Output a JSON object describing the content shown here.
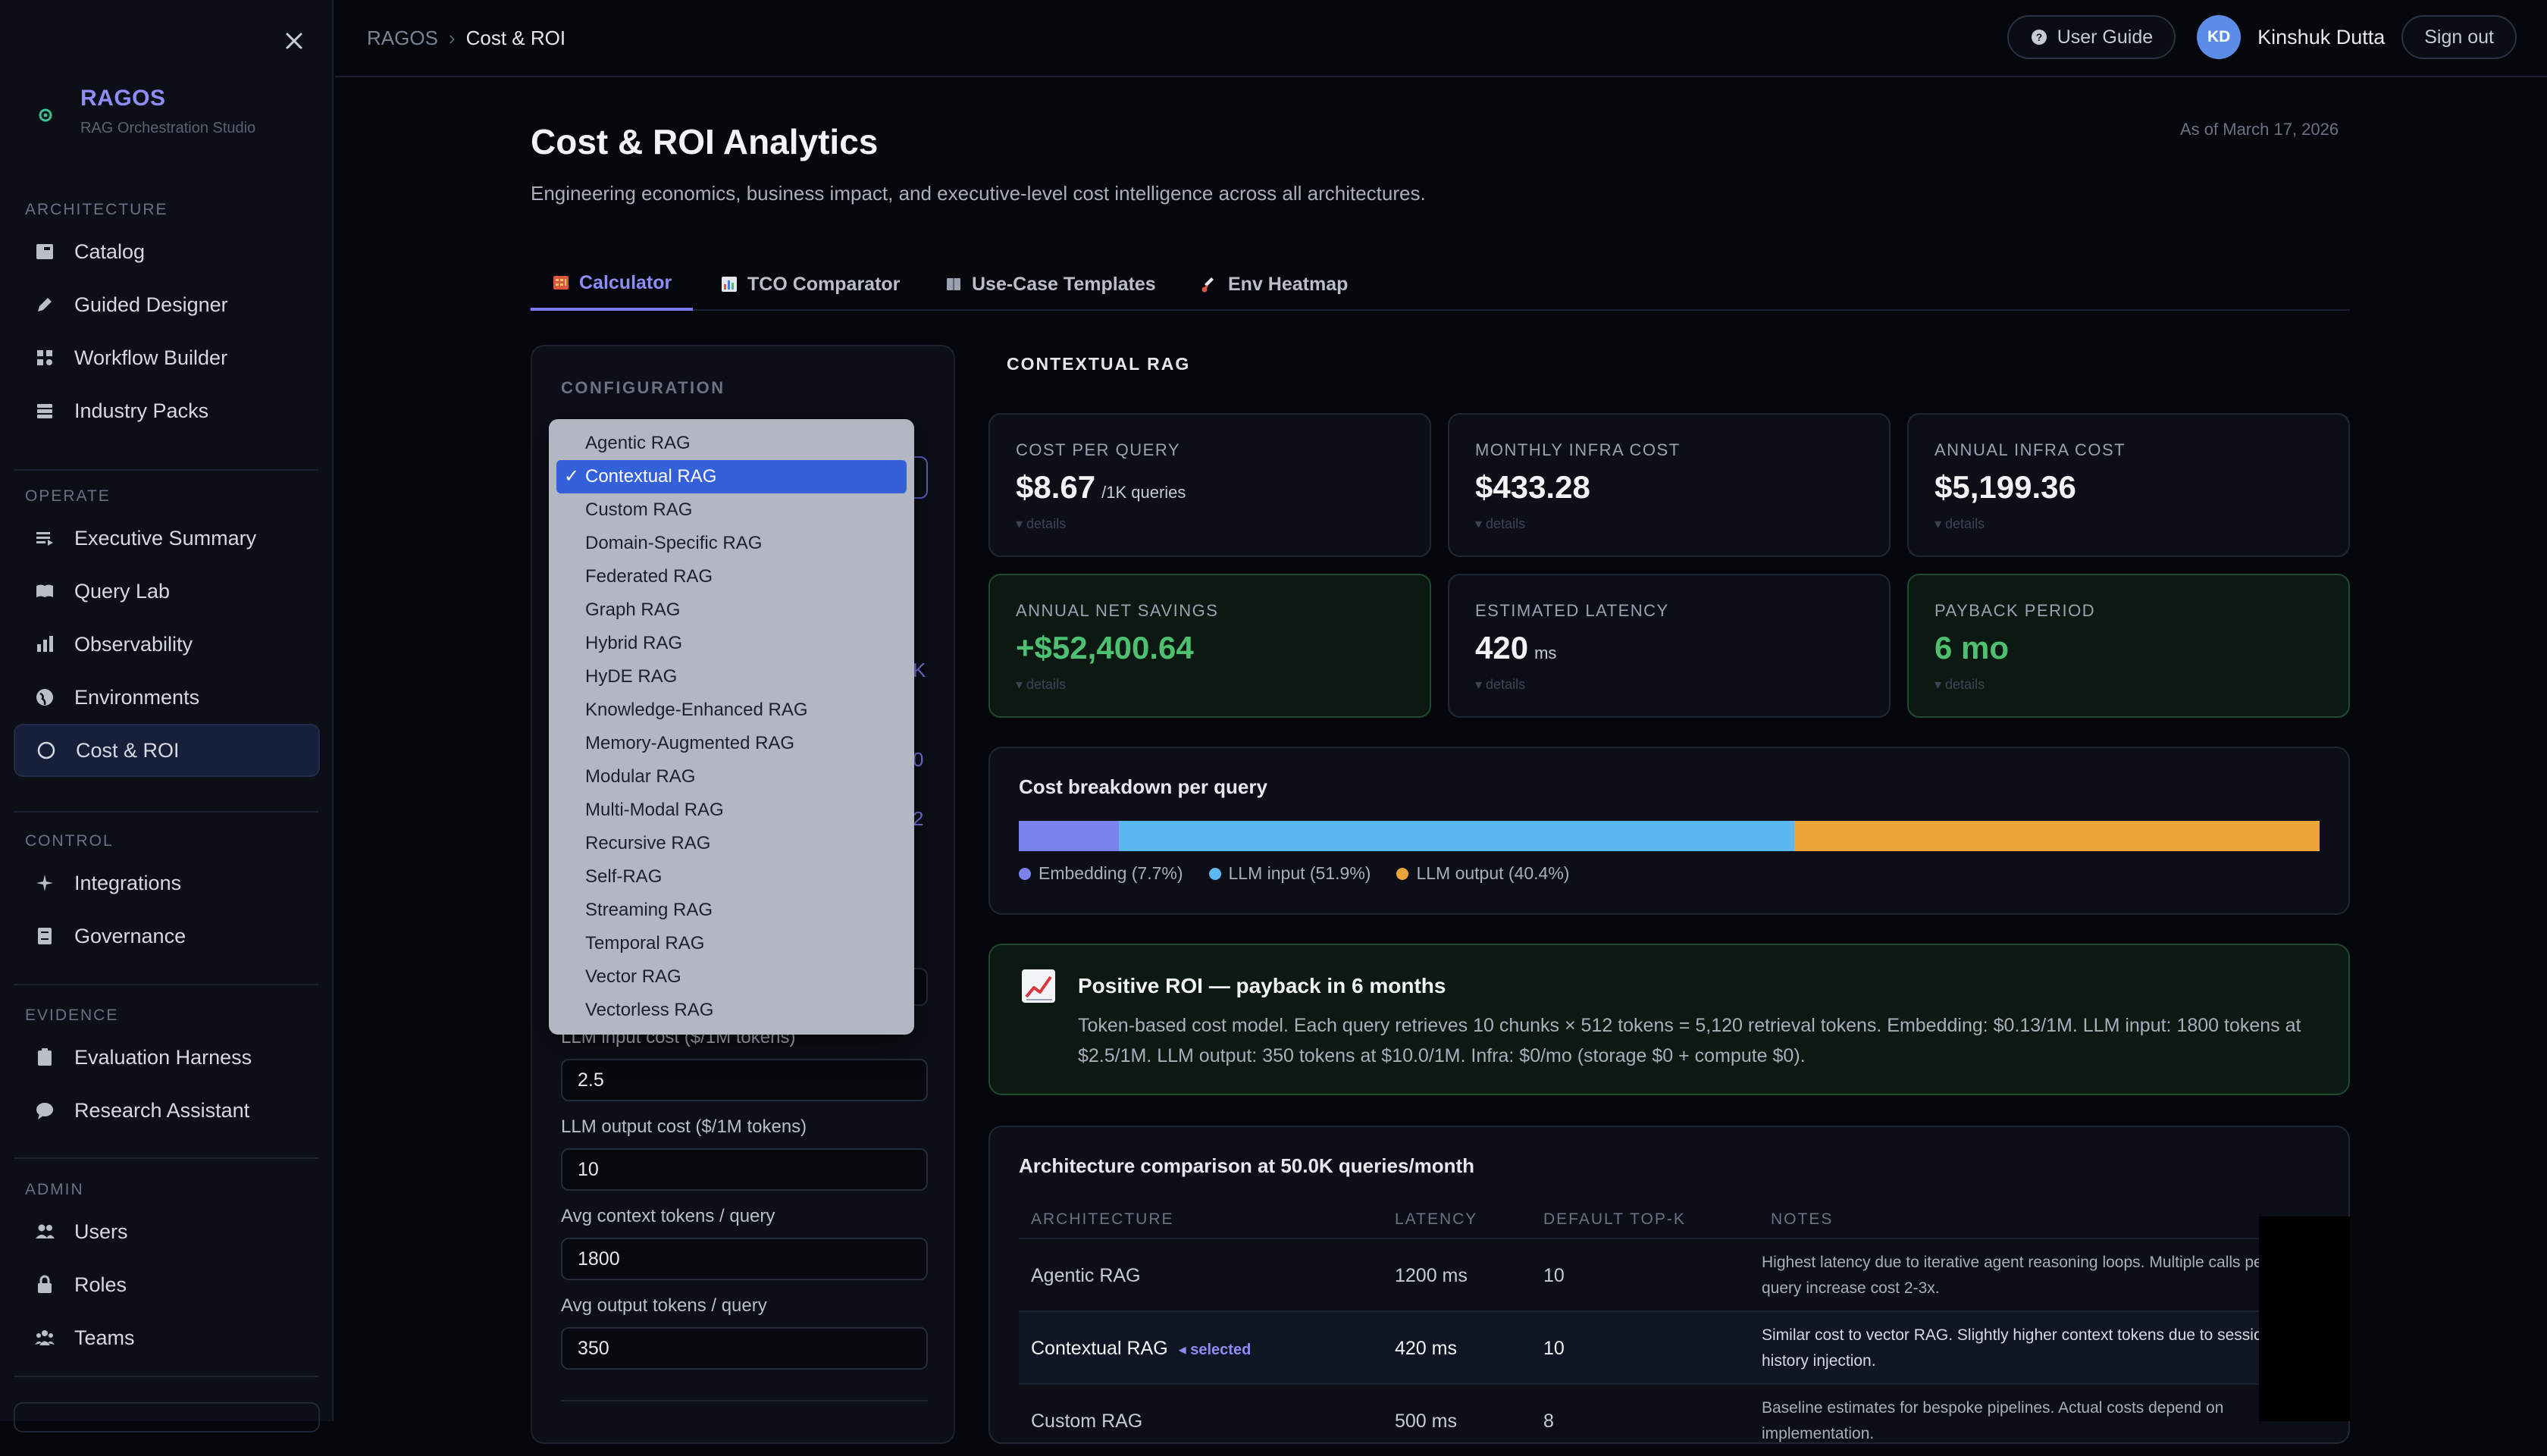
{
  "sidebar": {
    "brand_name": "RAGOS",
    "brand_sub": "RAG Orchestration Studio",
    "sections": [
      {
        "title": "ARCHITECTURE",
        "items": [
          "Catalog",
          "Guided Designer",
          "Workflow Builder",
          "Industry Packs"
        ]
      },
      {
        "title": "OPERATE",
        "items": [
          "Executive Summary",
          "Query Lab",
          "Observability",
          "Environments",
          "Cost & ROI"
        ]
      },
      {
        "title": "CONTROL",
        "items": [
          "Integrations",
          "Governance"
        ]
      },
      {
        "title": "EVIDENCE",
        "items": [
          "Evaluation Harness",
          "Research Assistant"
        ]
      },
      {
        "title": "ADMIN",
        "items": [
          "Users",
          "Roles",
          "Teams"
        ]
      }
    ],
    "active_item": "Cost & ROI"
  },
  "topbar": {
    "crumb_root": "RAGOS",
    "crumb_sep": "›",
    "crumb_current": "Cost & ROI",
    "user_guide": "User Guide",
    "avatar_initials": "KD",
    "user_name": "Kinshuk Dutta",
    "sign_out": "Sign out"
  },
  "header": {
    "title": "Cost & ROI Analytics",
    "subtitle": "Engineering economics, business impact, and executive-level cost intelligence across all architectures.",
    "as_of": "As of March 17, 2026"
  },
  "tabs": [
    {
      "label": "Calculator",
      "icon": "abacus-icon"
    },
    {
      "label": "TCO Comparator",
      "icon": "bar-chart-icon"
    },
    {
      "label": "Use-Case Templates",
      "icon": "book-icon"
    },
    {
      "label": "Env Heatmap",
      "icon": "thermometer-icon"
    }
  ],
  "config": {
    "title": "CONFIGURATION",
    "dropdown_options": [
      "Agentic RAG",
      "Contextual RAG",
      "Custom RAG",
      "Domain-Specific RAG",
      "Federated RAG",
      "Graph RAG",
      "Hybrid RAG",
      "HyDE RAG",
      "Knowledge-Enhanced RAG",
      "Memory-Augmented RAG",
      "Modular RAG",
      "Multi-Modal RAG",
      "Recursive RAG",
      "Self-RAG",
      "Streaming RAG",
      "Temporal RAG",
      "Vector RAG",
      "Vectorless RAG"
    ],
    "selected": "Contextual RAG",
    "ghost_chars": [
      "K",
      "0",
      "2"
    ],
    "fields": [
      {
        "label": "LLM input cost ($/1M tokens)",
        "value": "2.5"
      },
      {
        "label": "LLM output cost ($/1M tokens)",
        "value": "10"
      },
      {
        "label": "Avg context tokens / query",
        "value": "1800"
      },
      {
        "label": "Avg output tokens / query",
        "value": "350"
      }
    ]
  },
  "results": {
    "architecture": "CONTEXTUAL RAG",
    "details_label": "▾ details",
    "metrics": [
      {
        "label": "COST PER QUERY",
        "value": "$8.67",
        "unit": "/1K queries",
        "green": false
      },
      {
        "label": "MONTHLY INFRA COST",
        "value": "$433.28",
        "unit": "",
        "green": false
      },
      {
        "label": "ANNUAL INFRA COST",
        "value": "$5,199.36",
        "unit": "",
        "green": false
      },
      {
        "label": "ANNUAL NET SAVINGS",
        "value": "+$52,400.64",
        "unit": "",
        "green": true
      },
      {
        "label": "ESTIMATED LATENCY",
        "value": "420",
        "unit": "ms",
        "green": false
      },
      {
        "label": "PAYBACK PERIOD",
        "value": "6 mo",
        "unit": "",
        "green": true
      }
    ],
    "breakdown": {
      "title": "Cost breakdown per query",
      "segments": [
        {
          "label": "Embedding (7.7%)",
          "share": 7.7,
          "color": "#7b82ee"
        },
        {
          "label": "LLM input (51.9%)",
          "share": 51.9,
          "color": "#5cb8f2"
        },
        {
          "label": "LLM output (40.4%)",
          "share": 40.4,
          "color": "#eda53a"
        }
      ]
    },
    "roi": {
      "title": "Positive ROI — payback in 6 months",
      "body": "Token-based cost model. Each query retrieves 10 chunks × 512 tokens = 5,120 retrieval tokens. Embedding: $0.13/1M. LLM input: 1800 tokens at $2.5/1M. LLM output: 350 tokens at $10.0/1M. Infra: $0/mo (storage $0 + compute $0)."
    },
    "comparison": {
      "title": "Architecture comparison at 50.0K queries/month",
      "headers": [
        "ARCHITECTURE",
        "LATENCY",
        "DEFAULT TOP-K",
        "NOTES"
      ],
      "selected_tag": "◂ selected",
      "rows": [
        {
          "arch": "Agentic RAG",
          "latency": "1200 ms",
          "topk": "10",
          "notes": "Highest latency due to iterative agent reasoning loops. Multiple calls per query increase cost 2-3x.",
          "selected": false
        },
        {
          "arch": "Contextual RAG",
          "latency": "420 ms",
          "topk": "10",
          "notes": "Similar cost to vector RAG. Slightly higher context tokens due to session history injection.",
          "selected": true
        },
        {
          "arch": "Custom RAG",
          "latency": "500 ms",
          "topk": "8",
          "notes": "Baseline estimates for bespoke pipelines. Actual costs depend on implementation.",
          "selected": false
        }
      ]
    }
  }
}
